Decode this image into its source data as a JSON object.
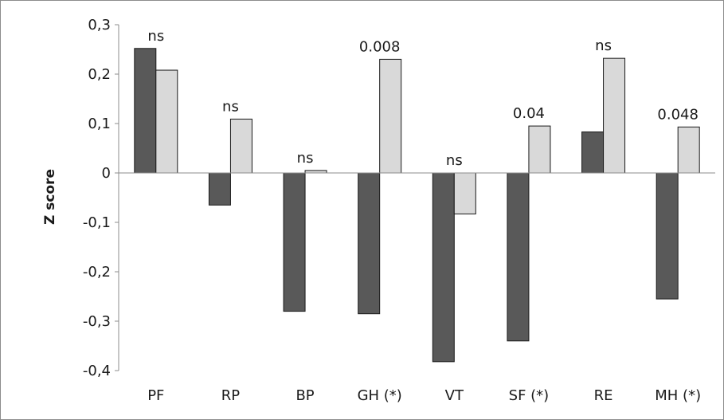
{
  "chart_data": {
    "type": "bar",
    "title": "",
    "xlabel": "",
    "ylabel": "Z score",
    "ylim": [
      -0.4,
      0.3
    ],
    "yticks": [
      0.3,
      0.2,
      0.1,
      0,
      -0.1,
      -0.2,
      -0.3,
      -0.4
    ],
    "ytick_labels": [
      "0,3",
      "0,2",
      "0,1",
      "0",
      "-0,1",
      "-0,2",
      "-0,3",
      "-0,4"
    ],
    "categories": [
      "PF",
      "RP",
      "BP",
      "GH (*)",
      "VT",
      "SF (*)",
      "RE",
      "MH (*)"
    ],
    "series": [
      {
        "values": [
          0.252,
          -0.065,
          -0.28,
          -0.285,
          -0.382,
          -0.34,
          0.083,
          -0.255
        ],
        "color": "#595959"
      },
      {
        "values": [
          0.208,
          0.109,
          0.005,
          0.23,
          -0.083,
          0.095,
          0.232,
          0.093
        ],
        "color": "#d9d9d9"
      }
    ],
    "annotations": [
      "ns",
      "ns",
      "ns",
      "0.008",
      "ns",
      "0.04",
      "ns",
      "0.048"
    ],
    "grid": false,
    "legend": "none"
  }
}
